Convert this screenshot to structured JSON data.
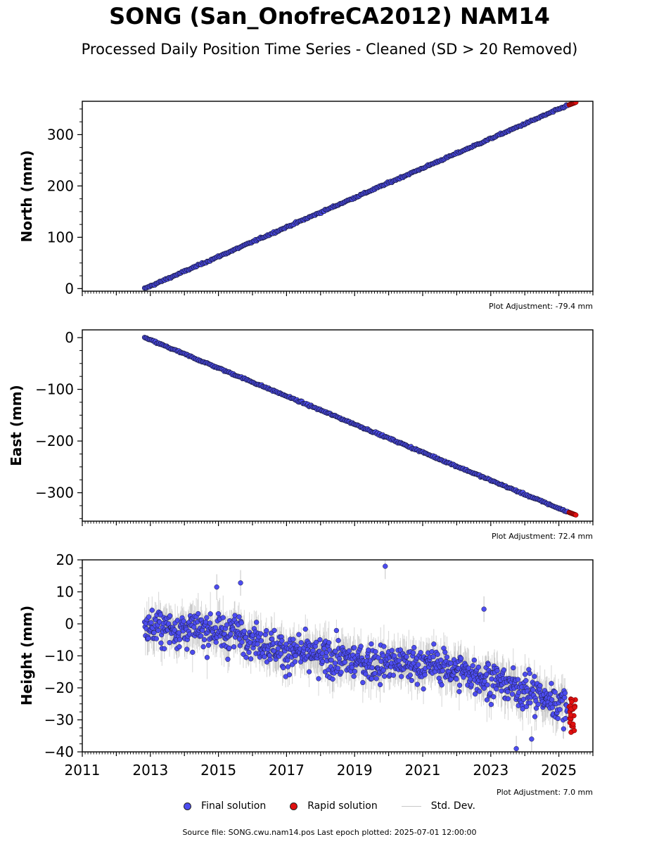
{
  "title": "SONG (San_OnofreCA2012) NAM14",
  "subtitle": "Processed Daily Position Time Series - Cleaned (SD > 20 Removed)",
  "footer": "Source file: SONG.cwu.nam14.pos  Last epoch plotted: 2025-07-01 12:00:00",
  "legend": {
    "final_label": "Final solution",
    "rapid_label": "Rapid solution",
    "std_label": "Std. Dev."
  },
  "colors": {
    "final": "#4c4cf0",
    "rapid": "#e01010",
    "std": "#8a8a8a",
    "marker_edge": "#1a1a3a"
  },
  "chart_data": [
    {
      "type": "scatter",
      "panel": "north",
      "ylabel": "North (mm)",
      "adjustment": "Plot Adjustment: -79.4 mm",
      "xlim": [
        2011,
        2026
      ],
      "ylim": [
        -5,
        365
      ],
      "yticks": [
        0,
        100,
        200,
        300
      ],
      "ytick_labels": [
        "0",
        "100",
        "200",
        "300"
      ],
      "series": [
        {
          "kind": "final",
          "start": [
            2012.83,
            0
          ],
          "end": [
            2025.25,
            357
          ],
          "noise_sd": 1.2
        },
        {
          "kind": "rapid",
          "start": [
            2025.3,
            358
          ],
          "end": [
            2025.5,
            363
          ],
          "noise_sd": 1.0
        }
      ]
    },
    {
      "type": "scatter",
      "panel": "east",
      "ylabel": "East (mm)",
      "adjustment": "Plot Adjustment: 72.4 mm",
      "xlim": [
        2011,
        2026
      ],
      "ylim": [
        -355,
        15
      ],
      "yticks": [
        0,
        -100,
        -200,
        -300
      ],
      "ytick_labels": [
        "0",
        "−100",
        "−200",
        "−300"
      ],
      "series": [
        {
          "kind": "final",
          "start": [
            2012.83,
            0
          ],
          "end": [
            2025.25,
            -337
          ],
          "noise_sd": 1.2
        },
        {
          "kind": "rapid",
          "start": [
            2025.3,
            -338
          ],
          "end": [
            2025.5,
            -343
          ],
          "noise_sd": 1.0
        }
      ]
    },
    {
      "type": "scatter",
      "panel": "height",
      "ylabel": "Height (mm)",
      "adjustment": "Plot Adjustment: 7.0 mm",
      "xlim": [
        2011,
        2026
      ],
      "ylim": [
        -40,
        20
      ],
      "yticks": [
        20,
        10,
        0,
        -10,
        -20,
        -30,
        -40
      ],
      "ytick_labels": [
        "20",
        "10",
        "0",
        "−10",
        "−20",
        "−30",
        "−40"
      ],
      "xticks": [
        2011,
        2013,
        2015,
        2017,
        2019,
        2021,
        2023,
        2025
      ],
      "xtick_labels": [
        "2011",
        "2013",
        "2015",
        "2017",
        "2019",
        "2021",
        "2023",
        "2025"
      ],
      "trend": [
        [
          2012.83,
          -1
        ],
        [
          2015.7,
          -3
        ],
        [
          2017.0,
          -9
        ],
        [
          2019.2,
          -12
        ],
        [
          2021.5,
          -13
        ],
        [
          2023.5,
          -19
        ],
        [
          2025.3,
          -26
        ]
      ],
      "noise_sd": 5,
      "std_dev_range": [
        3,
        7
      ],
      "outliers": [
        [
          2019.9,
          18
        ],
        [
          2022.8,
          4.6
        ],
        [
          2023.75,
          -39
        ],
        [
          2024.2,
          -36
        ],
        [
          2014.95,
          11.5
        ],
        [
          2015.65,
          12.8
        ]
      ],
      "series": [
        {
          "kind": "final",
          "start": [
            2012.83,
            -1
          ],
          "end": [
            2025.25,
            -26
          ]
        },
        {
          "kind": "rapid",
          "x": [
            2025.3,
            2025.5
          ],
          "y_range": [
            -34,
            -23
          ]
        }
      ]
    }
  ]
}
